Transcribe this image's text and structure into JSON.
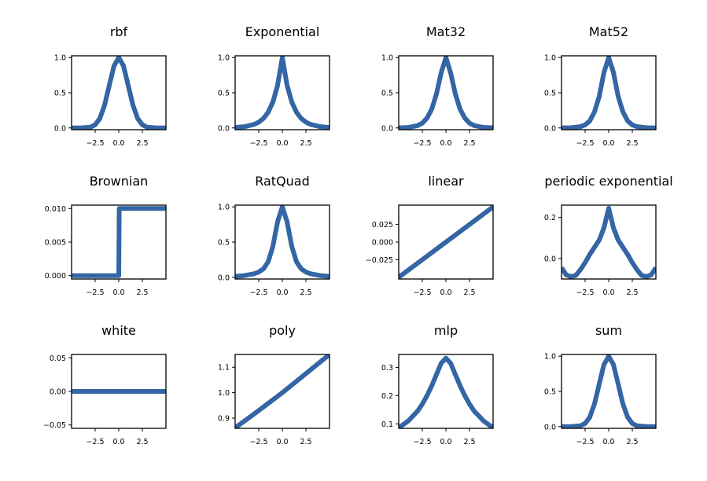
{
  "style": {
    "line_color": "#3465a4",
    "background": "#ffffff"
  },
  "chart_data": [
    {
      "type": "line",
      "title": "rbf",
      "xlim": [
        -5,
        5
      ],
      "ylim": [
        -0.025,
        1.025
      ],
      "xticks": [
        -2.5,
        0.0,
        2.5
      ],
      "xtick_labels": [
        "−2.5",
        "0.0",
        "2.5"
      ],
      "yticks": [
        0.0,
        0.5,
        1.0
      ],
      "ytick_labels": [
        "0.0",
        "0.5",
        "1.0"
      ],
      "series": [
        {
          "x": [
            -5,
            -4,
            -3,
            -2.5,
            -2,
            -1.5,
            -1,
            -0.5,
            0,
            0.5,
            1,
            1.5,
            2,
            2.5,
            3,
            4,
            5
          ],
          "y": [
            0,
            0,
            0.011,
            0.044,
            0.135,
            0.325,
            0.607,
            0.882,
            1,
            0.882,
            0.607,
            0.325,
            0.135,
            0.044,
            0.011,
            0,
            0
          ]
        }
      ]
    },
    {
      "type": "line",
      "title": "Exponential",
      "xlim": [
        -5,
        5
      ],
      "ylim": [
        -0.025,
        1.025
      ],
      "xticks": [
        -2.5,
        0.0,
        2.5
      ],
      "xtick_labels": [
        "−2.5",
        "0.0",
        "2.5"
      ],
      "yticks": [
        0.0,
        0.5,
        1.0
      ],
      "ytick_labels": [
        "0.0",
        "0.5",
        "1.0"
      ],
      "series": [
        {
          "x": [
            -5,
            -4,
            -3,
            -2.5,
            -2,
            -1.5,
            -1,
            -0.5,
            0,
            0.5,
            1,
            1.5,
            2,
            2.5,
            3,
            4,
            5
          ],
          "y": [
            0.007,
            0.018,
            0.05,
            0.082,
            0.135,
            0.223,
            0.368,
            0.607,
            1,
            0.607,
            0.368,
            0.223,
            0.135,
            0.082,
            0.05,
            0.018,
            0.007
          ]
        }
      ]
    },
    {
      "type": "line",
      "title": "Mat32",
      "xlim": [
        -5,
        5
      ],
      "ylim": [
        -0.025,
        1.025
      ],
      "xticks": [
        -2.5,
        0.0,
        2.5
      ],
      "xtick_labels": [
        "−2.5",
        "0.0",
        "2.5"
      ],
      "yticks": [
        0.0,
        0.5,
        1.0
      ],
      "ytick_labels": [
        "0.0",
        "0.5",
        "1.0"
      ],
      "series": [
        {
          "x": [
            -5,
            -4,
            -3,
            -2.5,
            -2,
            -1.5,
            -1,
            -0.5,
            0,
            0.5,
            1,
            1.5,
            2,
            2.5,
            3,
            4,
            5
          ],
          "y": [
            0.0016,
            0.007,
            0.033,
            0.068,
            0.14,
            0.267,
            0.483,
            0.785,
            1,
            0.785,
            0.483,
            0.267,
            0.14,
            0.068,
            0.033,
            0.007,
            0.0016
          ]
        }
      ]
    },
    {
      "type": "line",
      "title": "Mat52",
      "xlim": [
        -5,
        5
      ],
      "ylim": [
        -0.025,
        1.025
      ],
      "xticks": [
        -2.5,
        0.0,
        2.5
      ],
      "xtick_labels": [
        "−2.5",
        "0.0",
        "2.5"
      ],
      "yticks": [
        0.0,
        0.5,
        1.0
      ],
      "ytick_labels": [
        "0.0",
        "0.5",
        "1.0"
      ],
      "series": [
        {
          "x": [
            -5,
            -4,
            -3,
            -2.5,
            -2,
            -1.5,
            -1,
            -0.5,
            0,
            0.5,
            1,
            1.5,
            2,
            2.5,
            3,
            4,
            5
          ],
          "y": [
            0.0005,
            0.003,
            0.018,
            0.043,
            0.1,
            0.23,
            0.45,
            0.79,
            1,
            0.79,
            0.45,
            0.23,
            0.1,
            0.043,
            0.018,
            0.003,
            0.0005
          ]
        }
      ]
    },
    {
      "type": "line",
      "title": "Brownian",
      "xlim": [
        -5,
        5
      ],
      "ylim": [
        -0.0005,
        0.0105
      ],
      "xticks": [
        -2.5,
        0.0,
        2.5
      ],
      "xtick_labels": [
        "−2.5",
        "0.0",
        "2.5"
      ],
      "yticks": [
        0.0,
        0.005,
        0.01
      ],
      "ytick_labels": [
        "0.000",
        "0.005",
        "0.010"
      ],
      "series": [
        {
          "x": [
            -5,
            -0.05,
            0,
            0.05,
            5
          ],
          "y": [
            0,
            0,
            0,
            0.01,
            0.01
          ]
        }
      ]
    },
    {
      "type": "line",
      "title": "RatQuad",
      "xlim": [
        -5,
        5
      ],
      "ylim": [
        -0.025,
        1.025
      ],
      "xticks": [
        -2.5,
        0.0,
        2.5
      ],
      "xtick_labels": [
        "−2.5",
        "0.0",
        "2.5"
      ],
      "yticks": [
        0.0,
        0.5,
        1.0
      ],
      "ytick_labels": [
        "0.0",
        "0.5",
        "1.0"
      ],
      "series": [
        {
          "x": [
            -5,
            -4,
            -3,
            -2.5,
            -2,
            -1.5,
            -1,
            -0.5,
            0,
            0.5,
            1,
            1.5,
            2,
            2.5,
            3,
            4,
            5
          ],
          "y": [
            0.012,
            0.024,
            0.05,
            0.074,
            0.12,
            0.22,
            0.44,
            0.79,
            1,
            0.79,
            0.44,
            0.22,
            0.12,
            0.074,
            0.05,
            0.024,
            0.012
          ]
        }
      ]
    },
    {
      "type": "line",
      "title": "linear",
      "xlim": [
        -5,
        5
      ],
      "ylim": [
        -0.0525,
        0.0525
      ],
      "xticks": [
        -2.5,
        0.0,
        2.5
      ],
      "xtick_labels": [
        "−2.5",
        "0.0",
        "2.5"
      ],
      "yticks": [
        -0.025,
        0.0,
        0.025
      ],
      "ytick_labels": [
        "−0.025",
        "0.000",
        "0.025"
      ],
      "series": [
        {
          "x": [
            -5,
            5
          ],
          "y": [
            -0.05,
            0.05
          ]
        }
      ]
    },
    {
      "type": "line",
      "title": "periodic exponential",
      "xlim": [
        -5,
        5
      ],
      "ylim": [
        -0.1,
        0.26
      ],
      "xticks": [
        -2.5,
        0.0,
        2.5
      ],
      "xtick_labels": [
        "−2.5",
        "0.0",
        "2.5"
      ],
      "yticks": [
        0.0,
        0.2
      ],
      "ytick_labels": [
        "0.0",
        "0.2"
      ],
      "series": [
        {
          "x": [
            -5,
            -4.5,
            -4,
            -3.5,
            -3,
            -2.5,
            -2,
            -1.5,
            -1,
            -0.5,
            0,
            0.5,
            1,
            1.5,
            2,
            2.5,
            3,
            3.5,
            4,
            4.5,
            5
          ],
          "y": [
            -0.045,
            -0.08,
            -0.088,
            -0.083,
            -0.055,
            -0.02,
            0.02,
            0.055,
            0.09,
            0.15,
            0.245,
            0.15,
            0.09,
            0.055,
            0.02,
            -0.02,
            -0.055,
            -0.083,
            -0.088,
            -0.08,
            -0.045
          ]
        }
      ]
    },
    {
      "type": "line",
      "title": "white",
      "xlim": [
        -5,
        5
      ],
      "ylim": [
        -0.055,
        0.055
      ],
      "xticks": [
        -2.5,
        0.0,
        2.5
      ],
      "xtick_labels": [
        "−2.5",
        "0.0",
        "2.5"
      ],
      "yticks": [
        -0.05,
        0.0,
        0.05
      ],
      "ytick_labels": [
        "−0.05",
        "0.00",
        "0.05"
      ],
      "series": [
        {
          "x": [
            -5,
            5
          ],
          "y": [
            0,
            0
          ]
        }
      ]
    },
    {
      "type": "line",
      "title": "poly",
      "xlim": [
        -5,
        5
      ],
      "ylim": [
        0.86,
        1.15
      ],
      "xticks": [
        -2.5,
        0.0,
        2.5
      ],
      "xtick_labels": [
        "−2.5",
        "0.0",
        "2.5"
      ],
      "yticks": [
        0.9,
        1.0,
        1.1
      ],
      "ytick_labels": [
        "0.9",
        "1.0",
        "1.1"
      ],
      "series": [
        {
          "x": [
            -5,
            -4,
            -3,
            -2,
            -1,
            0,
            1,
            2,
            3,
            4,
            5
          ],
          "y": [
            0.862,
            0.889,
            0.916,
            0.944,
            0.972,
            1.0,
            1.03,
            1.06,
            1.09,
            1.12,
            1.15
          ]
        }
      ]
    },
    {
      "type": "line",
      "title": "mlp",
      "xlim": [
        -5,
        5
      ],
      "ylim": [
        0.084,
        0.346
      ],
      "xticks": [
        -2.5,
        0.0,
        2.5
      ],
      "xtick_labels": [
        "−2.5",
        "0.0",
        "2.5"
      ],
      "yticks": [
        0.1,
        0.2,
        0.3
      ],
      "ytick_labels": [
        "0.1",
        "0.2",
        "0.3"
      ],
      "series": [
        {
          "x": [
            -5,
            -4,
            -3,
            -2.5,
            -2,
            -1.5,
            -1,
            -0.5,
            0,
            0.5,
            1,
            1.5,
            2,
            2.5,
            3,
            4,
            5
          ],
          "y": [
            0.086,
            0.11,
            0.145,
            0.17,
            0.2,
            0.235,
            0.275,
            0.315,
            0.333,
            0.315,
            0.275,
            0.235,
            0.2,
            0.17,
            0.145,
            0.11,
            0.086
          ]
        }
      ]
    },
    {
      "type": "line",
      "title": "sum",
      "xlim": [
        -5,
        5
      ],
      "ylim": [
        -0.025,
        1.025
      ],
      "xticks": [
        -2.5,
        0.0,
        2.5
      ],
      "xtick_labels": [
        "−2.5",
        "0.0",
        "2.5"
      ],
      "yticks": [
        0.0,
        0.5,
        1.0
      ],
      "ytick_labels": [
        "0.0",
        "0.5",
        "1.0"
      ],
      "series": [
        {
          "x": [
            -5,
            -4,
            -3,
            -2.5,
            -2,
            -1.5,
            -1,
            -0.5,
            0,
            0.5,
            1,
            1.5,
            2,
            2.5,
            3,
            4,
            5
          ],
          "y": [
            0,
            0,
            0.011,
            0.044,
            0.135,
            0.325,
            0.607,
            0.882,
            1,
            0.882,
            0.607,
            0.325,
            0.135,
            0.044,
            0.011,
            0,
            0
          ]
        }
      ]
    }
  ]
}
